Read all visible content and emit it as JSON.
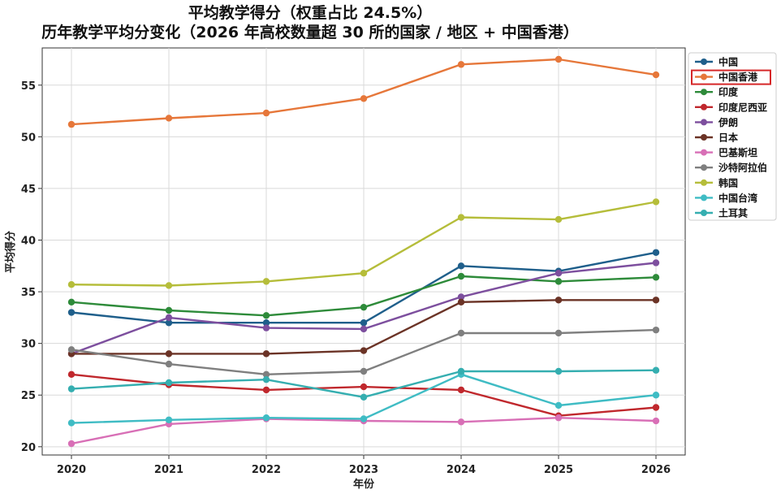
{
  "chart_data": {
    "type": "line",
    "title": [
      "平均教学得分（权重占比 24.5%）",
      "历年教学平均分变化（2026 年高校数量超 30 所的国家 / 地区 + 中国香港）"
    ],
    "xlabel": "年份",
    "ylabel": "平均得分",
    "x": [
      2020,
      2021,
      2022,
      2023,
      2024,
      2025,
      2026
    ],
    "xticks": [
      "2020",
      "2021",
      "2022",
      "2023",
      "2024",
      "2025",
      "2026"
    ],
    "yticks": [
      20,
      25,
      30,
      35,
      40,
      45,
      50,
      55
    ],
    "ylim": [
      19.2,
      58.6
    ],
    "grid": true,
    "legend_position": "top-right",
    "highlighted_legend_entry": "中国香港",
    "highlight_color": "#d62728",
    "series": [
      {
        "name": "中国",
        "color": "#1f5f8b",
        "values": [
          33.0,
          32.0,
          32.0,
          32.0,
          37.5,
          37.0,
          38.8
        ]
      },
      {
        "name": "中国香港",
        "color": "#e6773a",
        "values": [
          51.2,
          51.8,
          52.3,
          53.7,
          57.0,
          57.5,
          56.0
        ]
      },
      {
        "name": "印度",
        "color": "#2e8b3a",
        "values": [
          34.0,
          33.2,
          32.7,
          33.5,
          36.5,
          36.0,
          36.4
        ]
      },
      {
        "name": "印度尼西亚",
        "color": "#c0282d",
        "values": [
          27.0,
          26.0,
          25.5,
          25.8,
          25.5,
          23.0,
          23.8
        ]
      },
      {
        "name": "伊朗",
        "color": "#7d4f9e",
        "values": [
          29.0,
          32.5,
          31.5,
          31.4,
          34.5,
          36.8,
          37.8
        ]
      },
      {
        "name": "日本",
        "color": "#6b3326",
        "values": [
          29.0,
          29.0,
          29.0,
          29.3,
          34.0,
          34.2,
          34.2
        ]
      },
      {
        "name": "巴基斯坦",
        "color": "#d86fb6",
        "values": [
          20.3,
          22.2,
          22.7,
          22.5,
          22.4,
          22.8,
          22.5
        ]
      },
      {
        "name": "沙特阿拉伯",
        "color": "#7f7f7f",
        "values": [
          29.4,
          28.0,
          27.0,
          27.3,
          31.0,
          31.0,
          31.3
        ]
      },
      {
        "name": "韩国",
        "color": "#b5bd3a",
        "values": [
          35.7,
          35.6,
          36.0,
          36.8,
          42.2,
          42.0,
          43.7
        ]
      },
      {
        "name": "中国台湾",
        "color": "#3fbcc4",
        "values": [
          22.3,
          22.6,
          22.8,
          22.7,
          27.0,
          24.0,
          25.0
        ]
      },
      {
        "name": "土耳其",
        "color": "#35aeb0",
        "values": [
          25.6,
          26.2,
          26.5,
          24.8,
          27.3,
          27.3,
          27.4
        ]
      }
    ]
  }
}
